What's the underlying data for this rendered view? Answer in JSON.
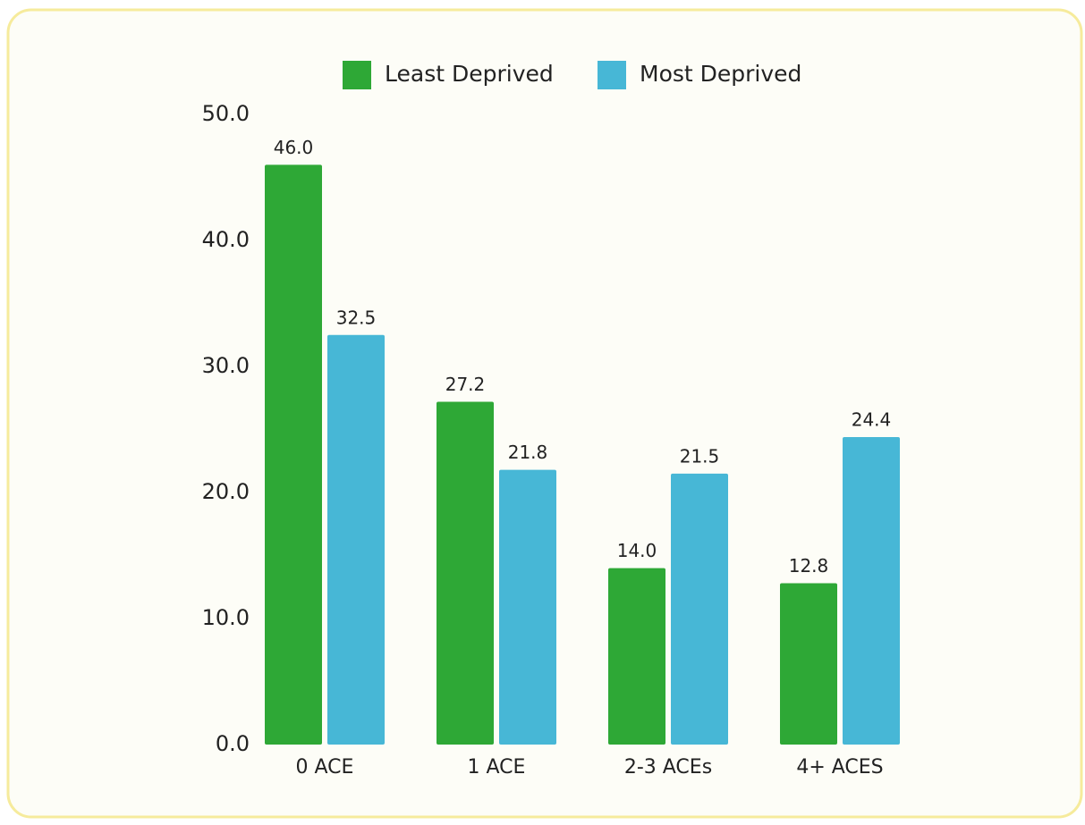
{
  "chart_data": {
    "type": "bar",
    "categories": [
      "0 ACE",
      "1 ACE",
      "2-3 ACEs",
      "4+ ACES"
    ],
    "series": [
      {
        "name": "Least Deprived",
        "color": "#2ea836",
        "values": [
          46.0,
          27.2,
          14.0,
          12.8
        ],
        "value_labels": [
          "46.0",
          "27.2",
          "14.0",
          "12.8"
        ]
      },
      {
        "name": "Most Deprived",
        "color": "#47b7d6",
        "values": [
          32.5,
          21.8,
          21.5,
          24.4
        ],
        "value_labels": [
          "32.5",
          "21.8",
          "21.5",
          "24.4"
        ]
      }
    ],
    "ylim": [
      0,
      50
    ],
    "yticks": [
      {
        "value": 0,
        "label": "0.0"
      },
      {
        "value": 10,
        "label": "10.0"
      },
      {
        "value": 20,
        "label": "20.0"
      },
      {
        "value": 30,
        "label": "30.0"
      },
      {
        "value": 40,
        "label": "40.0"
      },
      {
        "value": 50,
        "label": "50.0"
      }
    ],
    "legend": "top",
    "grid": false
  }
}
